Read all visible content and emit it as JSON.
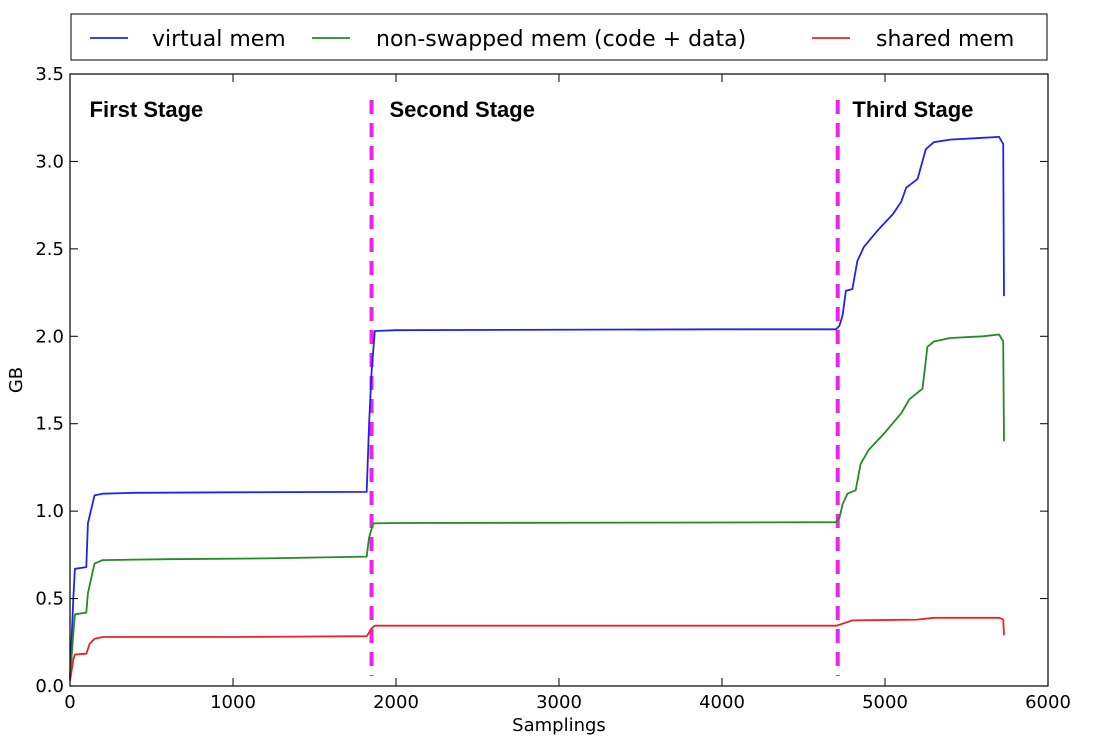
{
  "chart_data": {
    "type": "line",
    "xlabel": "Samplings",
    "ylabel": "GB",
    "xlim": [
      0,
      6000
    ],
    "ylim": [
      0,
      3.5
    ],
    "xticks": [
      0,
      1000,
      2000,
      3000,
      4000,
      5000,
      6000
    ],
    "xtick_labels": [
      "0",
      "1000",
      "2000",
      "3000",
      "4000",
      "5000",
      "6000"
    ],
    "yticks": [
      0,
      0.5,
      1.0,
      1.5,
      2.0,
      2.5,
      3.0,
      3.5
    ],
    "ytick_labels": [
      "0.0",
      "0.5",
      "1.0",
      "1.5",
      "2.0",
      "2.5",
      "3.0",
      "3.5"
    ],
    "grid": false,
    "legend_position": "top",
    "stage_dividers": [
      {
        "x": 1850,
        "color": "#ee22ee"
      },
      {
        "x": 4710,
        "color": "#ee22ee"
      }
    ],
    "annotations": [
      {
        "text": "First Stage",
        "x": 120,
        "y": 3.3
      },
      {
        "text": "Second Stage",
        "x": 1960,
        "y": 3.3
      },
      {
        "text": "Third Stage",
        "x": 4800,
        "y": 3.3
      }
    ],
    "series": [
      {
        "name": "virtual mem",
        "color": "#2222ee",
        "points": [
          [
            0,
            0.05
          ],
          [
            20,
            0.5
          ],
          [
            30,
            0.67
          ],
          [
            100,
            0.68
          ],
          [
            110,
            0.93
          ],
          [
            150,
            1.09
          ],
          [
            200,
            1.1
          ],
          [
            400,
            1.105
          ],
          [
            1000,
            1.108
          ],
          [
            1820,
            1.11
          ],
          [
            1835,
            1.5
          ],
          [
            1850,
            1.8
          ],
          [
            1870,
            2.03
          ],
          [
            2000,
            2.035
          ],
          [
            4000,
            2.04
          ],
          [
            4700,
            2.04
          ],
          [
            4720,
            2.06
          ],
          [
            4740,
            2.12
          ],
          [
            4760,
            2.26
          ],
          [
            4800,
            2.27
          ],
          [
            4830,
            2.43
          ],
          [
            4870,
            2.51
          ],
          [
            4950,
            2.6
          ],
          [
            5050,
            2.7
          ],
          [
            5100,
            2.77
          ],
          [
            5130,
            2.85
          ],
          [
            5200,
            2.9
          ],
          [
            5250,
            3.07
          ],
          [
            5300,
            3.11
          ],
          [
            5400,
            3.125
          ],
          [
            5600,
            3.135
          ],
          [
            5700,
            3.14
          ],
          [
            5725,
            3.1
          ],
          [
            5730,
            2.23
          ]
        ]
      },
      {
        "name": "non-swapped mem (code + data)",
        "color": "#228B22",
        "points": [
          [
            0,
            0.04
          ],
          [
            20,
            0.3
          ],
          [
            30,
            0.41
          ],
          [
            100,
            0.42
          ],
          [
            110,
            0.53
          ],
          [
            150,
            0.7
          ],
          [
            200,
            0.72
          ],
          [
            600,
            0.725
          ],
          [
            1200,
            0.73
          ],
          [
            1820,
            0.74
          ],
          [
            1835,
            0.85
          ],
          [
            1860,
            0.93
          ],
          [
            2000,
            0.932
          ],
          [
            4000,
            0.935
          ],
          [
            4700,
            0.937
          ],
          [
            4720,
            0.96
          ],
          [
            4740,
            1.04
          ],
          [
            4770,
            1.1
          ],
          [
            4820,
            1.12
          ],
          [
            4850,
            1.27
          ],
          [
            4900,
            1.35
          ],
          [
            5000,
            1.45
          ],
          [
            5100,
            1.56
          ],
          [
            5150,
            1.64
          ],
          [
            5230,
            1.7
          ],
          [
            5260,
            1.94
          ],
          [
            5300,
            1.97
          ],
          [
            5400,
            1.99
          ],
          [
            5600,
            2.0
          ],
          [
            5700,
            2.01
          ],
          [
            5725,
            1.97
          ],
          [
            5730,
            1.4
          ]
        ]
      },
      {
        "name": "shared mem",
        "color": "#ee2222",
        "points": [
          [
            0,
            0.03
          ],
          [
            20,
            0.15
          ],
          [
            30,
            0.18
          ],
          [
            100,
            0.185
          ],
          [
            120,
            0.24
          ],
          [
            150,
            0.27
          ],
          [
            200,
            0.28
          ],
          [
            1000,
            0.28
          ],
          [
            1820,
            0.285
          ],
          [
            1850,
            0.33
          ],
          [
            1870,
            0.345
          ],
          [
            4700,
            0.345
          ],
          [
            4720,
            0.35
          ],
          [
            4800,
            0.375
          ],
          [
            5200,
            0.38
          ],
          [
            5300,
            0.39
          ],
          [
            5700,
            0.39
          ],
          [
            5725,
            0.38
          ],
          [
            5730,
            0.29
          ]
        ]
      }
    ]
  }
}
